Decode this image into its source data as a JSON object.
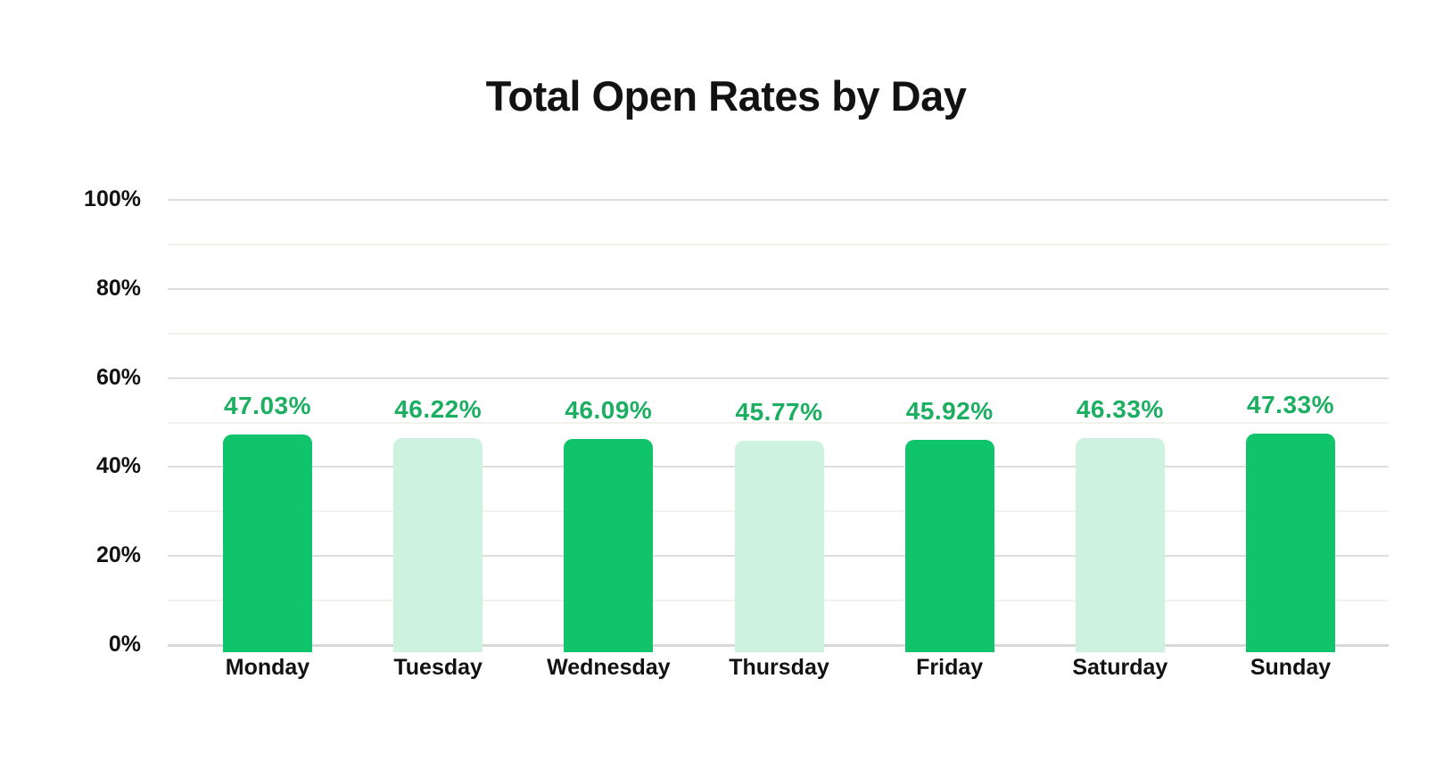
{
  "chart_data": {
    "type": "bar",
    "title": "Total Open Rates by Day",
    "categories": [
      "Monday",
      "Tuesday",
      "Wednesday",
      "Thursday",
      "Friday",
      "Saturday",
      "Sunday"
    ],
    "values": [
      47.03,
      46.22,
      46.09,
      45.77,
      45.92,
      46.33,
      47.33
    ],
    "value_labels": [
      "47.03%",
      "46.22%",
      "46.09%",
      "45.77%",
      "45.92%",
      "46.33%",
      "47.33%"
    ],
    "bar_palette": [
      "dark",
      "light",
      "dark",
      "light",
      "dark",
      "light",
      "dark"
    ],
    "xlabel": "",
    "ylabel": "",
    "ylim": [
      0,
      100
    ],
    "y_axis": {
      "tick_labels": [
        "100%",
        "80%",
        "60%",
        "40%",
        "20%",
        "0%"
      ],
      "tick_values": [
        100,
        80,
        60,
        40,
        20,
        0
      ],
      "minor_grid_values": [
        90,
        70,
        50,
        30,
        10
      ]
    },
    "legend": "none",
    "grid": "horizontal",
    "colors": {
      "bar_dark": "#0FC46A",
      "bar_light": "#CEF2E0",
      "value_label": "#1CAE61",
      "axis_text": "#121212",
      "title_text": "#121212",
      "grid_major": "#DEDEDE",
      "grid_minor": "#F3F1ED",
      "background": "#FFFFFF"
    }
  }
}
